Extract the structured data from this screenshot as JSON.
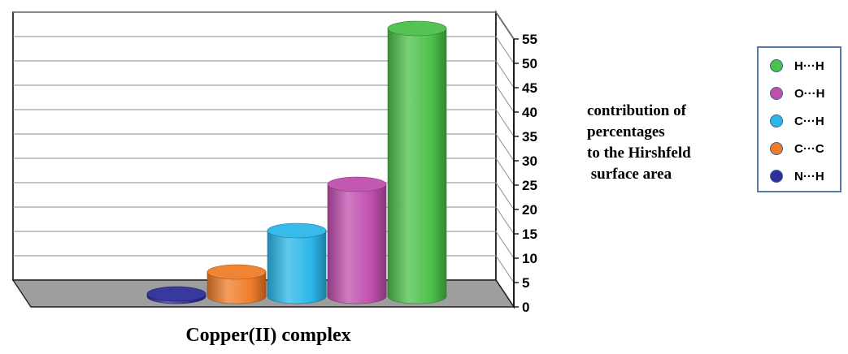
{
  "chart_data": {
    "type": "bar",
    "style": "3d-cylinder",
    "categories": [
      "N···H",
      "C···C",
      "C···H",
      "O···H",
      "H···H"
    ],
    "values": [
      0.5,
      5,
      13.5,
      23,
      55
    ],
    "colors": [
      "#2e2f9a",
      "#f07c2a",
      "#2bb7ea",
      "#c04fae",
      "#4cc04a"
    ],
    "xlabel": "Copper(II) complex",
    "side_text": [
      "contribution of",
      "percentages",
      "to the Hirshfeld",
      " surface area"
    ],
    "ylim": [
      0,
      55
    ],
    "yticks": [
      "0",
      "5",
      "10",
      "15",
      "20",
      "25",
      "30",
      "35",
      "40",
      "45",
      "50",
      "55"
    ],
    "grid": true,
    "legend_position": "right",
    "legend": [
      {
        "label": "H···H",
        "color": "#4cc04a"
      },
      {
        "label": "O···H",
        "color": "#c04fae"
      },
      {
        "label": "C···H",
        "color": "#2bb7ea"
      },
      {
        "label": "C···C",
        "color": "#f07c2a"
      },
      {
        "label": "N···H",
        "color": "#2e2f9a"
      }
    ]
  }
}
